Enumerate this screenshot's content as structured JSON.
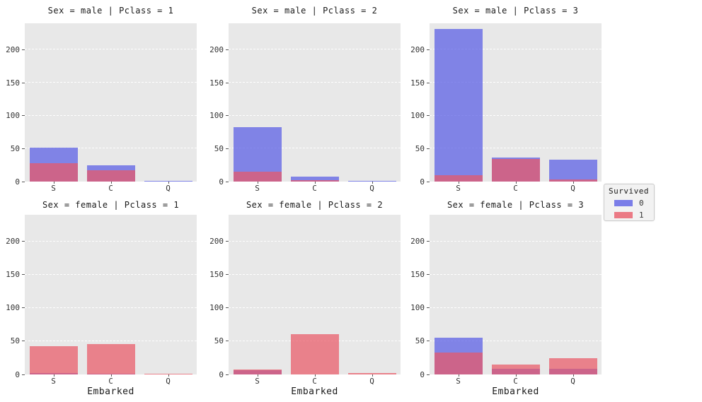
{
  "chart_data": {
    "type": "bar",
    "style": "layered-histogram facet grid",
    "facet_rows_var": "Sex",
    "facet_cols_var": "Pclass",
    "categories": [
      "S",
      "C",
      "Q"
    ],
    "xlabel": "Embarked",
    "ylim": [
      0,
      240
    ],
    "yticks": [
      "0",
      "50",
      "100",
      "150",
      "200"
    ],
    "ytick_values": [
      0,
      50,
      100,
      150,
      200
    ],
    "grid": "white dashed horizontal gridlines on light gray panel",
    "legend": {
      "title": "Survived",
      "position": "center right, outside axes",
      "entries": [
        {
          "label": "0",
          "color": "#585ce5"
        },
        {
          "label": "1",
          "color": "#e95967"
        }
      ]
    },
    "facets": [
      {
        "title": "Sex = male | Pclass = 1",
        "sex": "male",
        "pclass": "1",
        "series": [
          {
            "name": "0",
            "values": [
              51,
              25,
              1
            ]
          },
          {
            "name": "1",
            "values": [
              28,
              17,
              0
            ]
          }
        ]
      },
      {
        "title": "Sex = male | Pclass = 2",
        "sex": "male",
        "pclass": "2",
        "series": [
          {
            "name": "0",
            "values": [
              82,
              8,
              1
            ]
          },
          {
            "name": "1",
            "values": [
              15,
              2,
              0
            ]
          }
        ]
      },
      {
        "title": "Sex = male | Pclass = 3",
        "sex": "male",
        "pclass": "3",
        "series": [
          {
            "name": "0",
            "values": [
              231,
              36,
              33
            ]
          },
          {
            "name": "1",
            "values": [
              10,
              34,
              3
            ]
          }
        ]
      },
      {
        "title": "Sex = female | Pclass = 1",
        "sex": "female",
        "pclass": "1",
        "series": [
          {
            "name": "0",
            "values": [
              2,
              1,
              0
            ]
          },
          {
            "name": "1",
            "values": [
              42,
              46,
              1
            ]
          }
        ]
      },
      {
        "title": "Sex = female | Pclass = 2",
        "sex": "female",
        "pclass": "2",
        "series": [
          {
            "name": "0",
            "values": [
              6,
              0,
              0
            ]
          },
          {
            "name": "1",
            "values": [
              7,
              61,
              2
            ]
          }
        ]
      },
      {
        "title": "Sex = female | Pclass = 3",
        "sex": "female",
        "pclass": "3",
        "series": [
          {
            "name": "0",
            "values": [
              55,
              8,
              9
            ]
          },
          {
            "name": "1",
            "values": [
              33,
              15,
              24
            ]
          }
        ]
      }
    ]
  },
  "colors": {
    "bar_blue_rgba": "rgba(88,92,229,0.72)",
    "bar_red_rgba": "rgba(233,89,103,0.72)",
    "panel_bg": "#e8e8e8",
    "gridline": "#ffffff",
    "text": "#262626"
  }
}
